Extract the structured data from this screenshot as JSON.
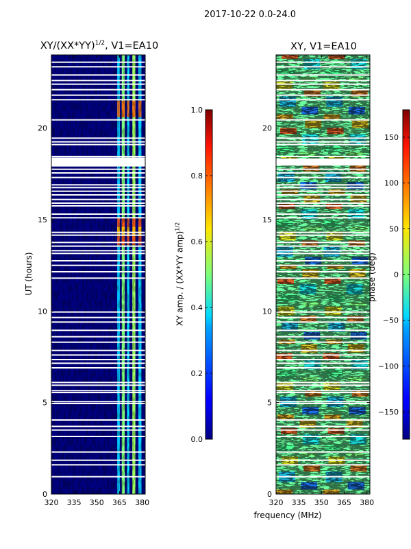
{
  "suptitle": "2017-10-22 0.0-24.0",
  "chart_data": [
    {
      "type": "heatmap",
      "title_main": "XY/(XX*YY)",
      "title_sup": "1/2",
      "title_suffix": ", V1=EA10",
      "xlabel": "",
      "ylabel": "UT (hours)",
      "xlim": [
        320,
        382
      ],
      "ylim": [
        0,
        24
      ],
      "xticks": [
        "320",
        "335",
        "350",
        "365",
        "380"
      ],
      "xtick_values": [
        320,
        335,
        350,
        365,
        380
      ],
      "yticks": [
        "0",
        "5",
        "10",
        "15",
        "20"
      ],
      "ytick_values": [
        0,
        5,
        10,
        15,
        20
      ],
      "colorbar": {
        "label": "XY amp. / (XX*YY amp)",
        "label_sup": "1/2",
        "range": [
          0.0,
          1.0
        ],
        "ticks": [
          "0.0",
          "0.2",
          "0.4",
          "0.6",
          "0.8",
          "1.0"
        ],
        "tick_values": [
          0.0,
          0.2,
          0.4,
          0.6,
          0.8,
          1.0
        ]
      }
    },
    {
      "type": "heatmap",
      "title": "XY, V1=EA10",
      "xlabel": "frequency (MHz)",
      "ylabel": "",
      "xlim": [
        320,
        382
      ],
      "ylim": [
        0,
        24
      ],
      "xticks": [
        "320",
        "335",
        "350",
        "365",
        "380"
      ],
      "xtick_values": [
        320,
        335,
        350,
        365,
        380
      ],
      "yticks": [
        "0",
        "5",
        "10",
        "15",
        "20"
      ],
      "ytick_values": [
        0,
        5,
        10,
        15,
        20
      ],
      "colorbar": {
        "label": "phase (deg)",
        "range": [
          -180,
          180
        ],
        "ticks": [
          "−150",
          "−100",
          "−50",
          "0",
          "50",
          "100",
          "150"
        ],
        "tick_values": [
          -150,
          -100,
          -50,
          0,
          50,
          100,
          150
        ]
      }
    }
  ],
  "flagged_hours": [
    0.95,
    1.6,
    1.85,
    2.3,
    3.15,
    3.5,
    3.7,
    4.05,
    4.95,
    5.05,
    5.55,
    5.65,
    5.95,
    6.1,
    6.9,
    7.15,
    7.35,
    7.6,
    7.85,
    8.3,
    8.6,
    8.95,
    9.4,
    9.65,
    9.95,
    11.8,
    12.15,
    12.5,
    12.75,
    13.15,
    13.3,
    13.55,
    13.75,
    14.15,
    14.3,
    15.1,
    15.3,
    15.75,
    15.9,
    16.1,
    16.35,
    16.55,
    16.75,
    16.9,
    17.3,
    17.55,
    17.75,
    18.05,
    18.15,
    18.3,
    18.45,
    19.1,
    19.25,
    19.45,
    20.45,
    21.55,
    21.8,
    22.1,
    22.4,
    22.6,
    22.9,
    23.35,
    23.6
  ],
  "amp_bands_mhz": [
    [
      363.5,
      365.2
    ],
    [
      366.5,
      368.5
    ],
    [
      370,
      371.5
    ],
    [
      373.5,
      375.5
    ],
    [
      377.5,
      379.5
    ]
  ]
}
